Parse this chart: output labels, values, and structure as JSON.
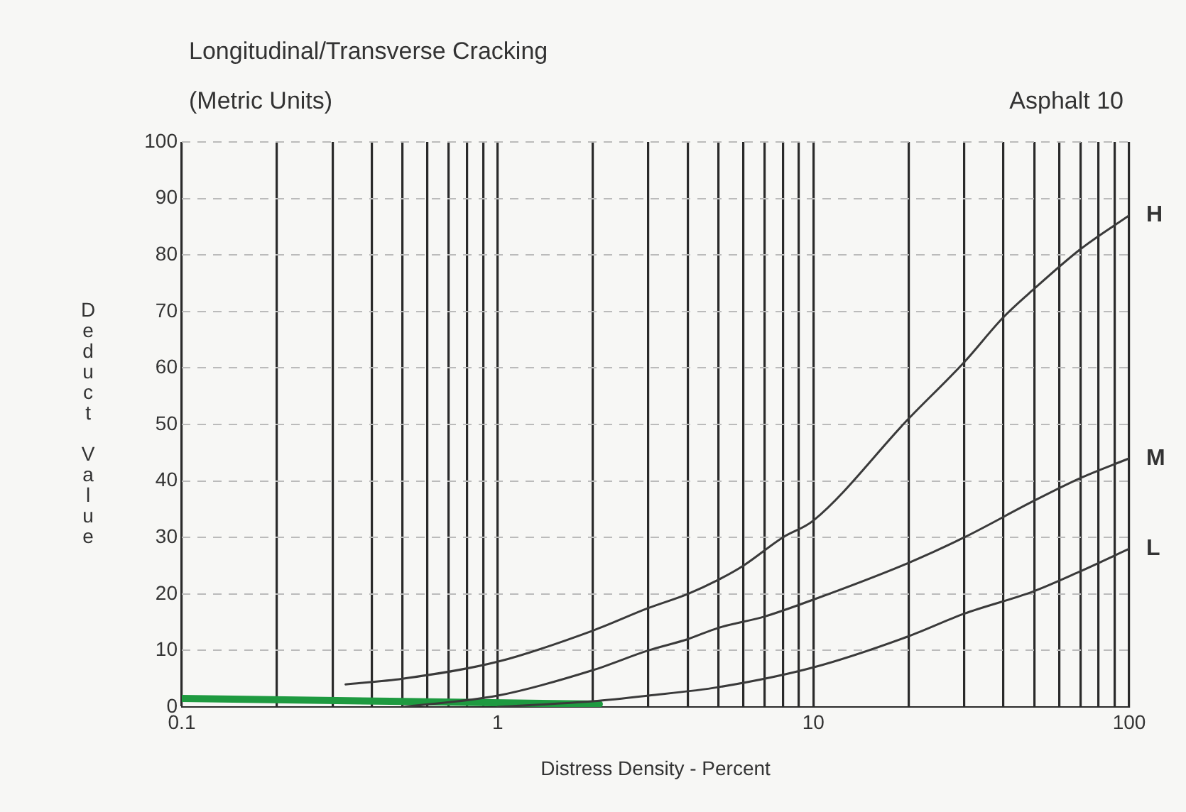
{
  "chart_data": {
    "type": "line",
    "title": "Longitudinal/Transverse Cracking",
    "subtitle": "(Metric Units)",
    "xlabel": "Distress Density - Percent",
    "ylabel": "Deduct Value",
    "annotations": [
      "Asphalt 10"
    ],
    "log": "x",
    "grid": true,
    "legend": false,
    "marker": "none",
    "line_style": "solid",
    "xlim": [
      0.1,
      100
    ],
    "xticks": [
      0.1,
      {
        "value": 0.2,
        "label": null
      },
      {
        "value": 0.3,
        "label": null
      },
      {
        "value": 0.4,
        "label": null
      },
      {
        "value": 0.5,
        "label": null
      },
      {
        "value": 0.6,
        "label": null
      },
      {
        "value": 0.7,
        "label": null
      },
      {
        "value": 0.8,
        "label": null
      },
      {
        "value": 0.9,
        "label": null
      },
      1,
      {
        "value": 2,
        "label": null
      },
      {
        "value": 3,
        "label": null
      },
      {
        "value": 4,
        "label": null
      },
      {
        "value": 5,
        "label": null
      },
      {
        "value": 6,
        "label": null
      },
      {
        "value": 7,
        "label": null
      },
      {
        "value": 8,
        "label": null
      },
      {
        "value": 9,
        "label": null
      },
      10,
      {
        "value": 20,
        "label": null
      },
      {
        "value": 30,
        "label": null
      },
      {
        "value": 40,
        "label": null
      },
      {
        "value": 50,
        "label": null
      },
      {
        "value": 60,
        "label": null
      },
      {
        "value": 70,
        "label": null
      },
      {
        "value": 80,
        "label": null
      },
      {
        "value": 90,
        "label": null
      },
      100
    ],
    "ylim": [
      0,
      100
    ],
    "yticks": [
      0,
      10,
      20,
      30,
      40,
      50,
      60,
      70,
      80,
      90,
      100
    ],
    "series": [
      {
        "name": "H",
        "color": "#3a3a3a",
        "x": [
          0.33,
          0.5,
          1,
          2,
          3,
          4,
          5,
          6,
          8,
          10,
          20,
          30,
          40,
          50,
          70,
          100
        ],
        "values": [
          4,
          5,
          8,
          13.5,
          17.5,
          20,
          22.5,
          25,
          30,
          33,
          51,
          61,
          69,
          74,
          81,
          87
        ]
      },
      {
        "name": "M",
        "color": "#3a3a3a",
        "x": [
          0.5,
          1,
          2,
          3,
          4,
          5,
          7,
          10,
          20,
          30,
          50,
          70,
          100
        ],
        "values": [
          0,
          2,
          6.5,
          10,
          12,
          14,
          16,
          19,
          25.5,
          30,
          36.5,
          40.5,
          44
        ]
      },
      {
        "name": "L",
        "color": "#3a3a3a",
        "x": [
          1,
          2,
          3,
          5,
          10,
          20,
          30,
          50,
          70,
          100
        ],
        "values": [
          0,
          1,
          2,
          3.5,
          7,
          12.5,
          16.5,
          20.5,
          24,
          28
        ]
      },
      {
        "color": "#1e9a40",
        "x": [
          0.1,
          2.1
        ],
        "values": [
          1.5,
          0.5
        ]
      }
    ]
  }
}
